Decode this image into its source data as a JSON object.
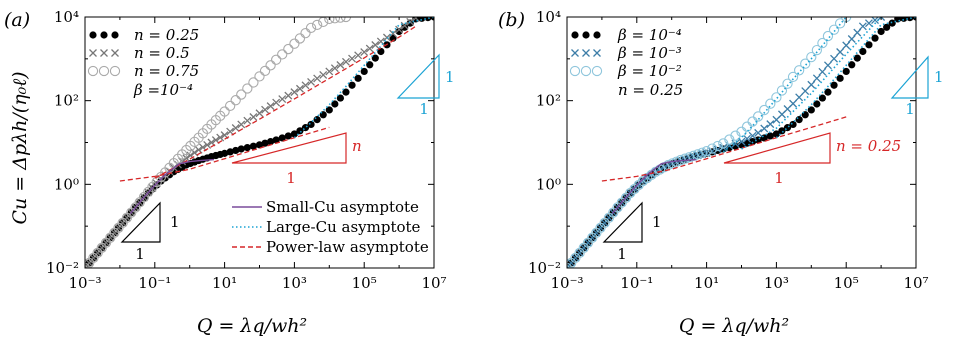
{
  "colors": {
    "black": "#000000",
    "grey": "#777777",
    "lightgrey": "#aaaaaa",
    "red": "#d62728",
    "purple": "#7a4b9b",
    "cyan": "#1ba3d4",
    "blue_x": "#3d7ea8"
  },
  "chart_data": [
    {
      "type": "scatter",
      "panel_label": "(a)",
      "xlabel": "Q = λq/wh²",
      "ylabel": "Cu = Δpλh/(η₀ℓ)",
      "xscale": "log",
      "yscale": "log",
      "xlim": [
        0.001,
        10000000
      ],
      "ylim": [
        0.01,
        10000
      ],
      "x_ticks": [
        "10⁻³",
        "10⁻¹",
        "10¹",
        "10³",
        "10⁵",
        "10⁷"
      ],
      "y_ticks": [
        "10⁻²",
        "10⁰",
        "10²",
        "10⁴"
      ],
      "legend": {
        "entries": [
          {
            "symbol": "●●●",
            "label": "n = 0.25"
          },
          {
            "symbol": "×××",
            "label": "n = 0.5"
          },
          {
            "symbol": "○○○",
            "label": "n = 0.75"
          }
        ],
        "note": "β =10⁻⁴",
        "placement": "top-left"
      },
      "line_legend": [
        {
          "label": "Small-Cu asymptote"
        },
        {
          "label": "Large-Cu asymptote"
        },
        {
          "label": "Power-law asymptote"
        }
      ],
      "series": [
        {
          "name": "n = 0.25",
          "marker": "dot",
          "x": [
            0.001,
            0.0023,
            0.0053,
            0.012,
            0.028,
            0.065,
            0.15,
            0.35,
            0.8,
            1.8,
            4.2,
            10,
            30,
            100,
            300,
            1000,
            3000,
            10000,
            30000,
            100000,
            300000,
            1000000,
            3000000,
            10000000
          ],
          "y": [
            0.01,
            0.023,
            0.053,
            0.12,
            0.28,
            0.62,
            1.2,
            2.0,
            2.9,
            3.7,
            4.6,
            5.5,
            7.0,
            8.8,
            11.5,
            16,
            27,
            60,
            160,
            500,
            1500,
            4500,
            9000,
            10000
          ]
        },
        {
          "name": "n = 0.5",
          "marker": "cross",
          "x": [
            0.001,
            0.0023,
            0.0053,
            0.012,
            0.028,
            0.065,
            0.15,
            0.35,
            0.8,
            1.8,
            4.2,
            10,
            30,
            100,
            300,
            1000,
            3000,
            10000,
            30000,
            100000,
            300000,
            1000000,
            3000000
          ],
          "y": [
            0.01,
            0.023,
            0.053,
            0.12,
            0.28,
            0.64,
            1.35,
            2.5,
            4.2,
            6.7,
            10,
            15,
            27,
            50,
            90,
            160,
            280,
            500,
            850,
            1450,
            2600,
            5000,
            9500
          ]
        },
        {
          "name": "n = 0.75",
          "marker": "circle",
          "x": [
            0.001,
            0.0023,
            0.0053,
            0.012,
            0.028,
            0.065,
            0.15,
            0.35,
            0.8,
            1.8,
            4.2,
            10,
            30,
            100,
            300,
            1000,
            3000,
            10000,
            30000
          ],
          "y": [
            0.01,
            0.023,
            0.053,
            0.12,
            0.28,
            0.66,
            1.5,
            3.2,
            6.6,
            13,
            27,
            55,
            140,
            380,
            950,
            2300,
            5500,
            9000,
            10000
          ]
        }
      ],
      "asymptotes": [
        {
          "kind": "power-law",
          "x": [
            0.01,
            0.1,
            1,
            10,
            100,
            1000,
            10000
          ],
          "y": [
            1.2,
            1.55,
            2.3,
            4.1,
            7.3,
            13,
            23
          ]
        },
        {
          "kind": "power-law",
          "x": [
            0.1,
            1,
            10,
            100,
            1000,
            10000,
            100000,
            1000000,
            3000000
          ],
          "y": [
            1.4,
            4.0,
            12,
            36,
            110,
            340,
            1050,
            3300,
            6000
          ]
        },
        {
          "kind": "small-cu",
          "x": [
            0.02,
            0.05,
            0.1,
            0.2,
            0.5,
            1,
            2,
            5
          ],
          "y": [
            0.2,
            0.5,
            0.95,
            1.7,
            3.1,
            3.5,
            3.7,
            3.9
          ]
        },
        {
          "kind": "large-cu",
          "x": [
            1000,
            3000,
            10000,
            30000,
            100000,
            1000000,
            10000000
          ],
          "y": [
            13,
            30,
            80,
            220,
            700,
            6500,
            10000
          ]
        }
      ],
      "triangles": [
        {
          "label": "1",
          "slope_label": "1"
        },
        {
          "label": "1",
          "slope_label": "n"
        },
        {
          "label": "1",
          "slope_label": "1"
        }
      ]
    },
    {
      "type": "scatter",
      "panel_label": "(b)",
      "xlabel": "Q = λq/wh²",
      "xscale": "log",
      "yscale": "log",
      "xlim": [
        0.001,
        10000000
      ],
      "ylim": [
        0.01,
        10000
      ],
      "x_ticks": [
        "10⁻³",
        "10⁻¹",
        "10¹",
        "10³",
        "10⁵",
        "10⁷"
      ],
      "y_ticks": [
        "10⁻²",
        "10⁰",
        "10²",
        "10⁴"
      ],
      "legend": {
        "entries": [
          {
            "symbol": "●●●",
            "label": "β = 10⁻⁴"
          },
          {
            "symbol": "×××",
            "label": "β = 10⁻³"
          },
          {
            "symbol": "○○○",
            "label": "β = 10⁻²"
          }
        ],
        "note": "n = 0.25",
        "placement": "top-left"
      },
      "series": [
        {
          "name": "β = 10⁻⁴",
          "marker": "dot",
          "x": [
            0.001,
            0.0023,
            0.0053,
            0.012,
            0.028,
            0.065,
            0.15,
            0.35,
            0.8,
            1.8,
            4.2,
            10,
            30,
            100,
            300,
            1000,
            3000,
            10000,
            30000,
            100000,
            300000,
            1000000,
            3000000,
            10000000
          ],
          "y": [
            0.01,
            0.023,
            0.053,
            0.12,
            0.28,
            0.62,
            1.2,
            2.0,
            2.9,
            3.7,
            4.6,
            5.5,
            7.0,
            8.8,
            11.5,
            16,
            27,
            60,
            160,
            500,
            1500,
            4500,
            9000,
            10000
          ]
        },
        {
          "name": "β = 10⁻³",
          "marker": "cross",
          "x": [
            0.001,
            0.0023,
            0.0053,
            0.012,
            0.028,
            0.065,
            0.15,
            0.35,
            0.8,
            1.8,
            4.2,
            10,
            30,
            100,
            300,
            1000,
            3000,
            10000,
            30000,
            100000,
            300000,
            1000000
          ],
          "y": [
            0.01,
            0.023,
            0.053,
            0.12,
            0.28,
            0.62,
            1.2,
            2.0,
            2.9,
            3.7,
            4.6,
            5.6,
            7.5,
            10.5,
            17,
            35,
            85,
            240,
            700,
            2100,
            6000,
            10000
          ]
        },
        {
          "name": "β = 10⁻²",
          "marker": "circle",
          "x": [
            0.001,
            0.0023,
            0.0053,
            0.012,
            0.028,
            0.065,
            0.15,
            0.35,
            0.8,
            1.8,
            4.2,
            10,
            30,
            100,
            300,
            1000,
            3000,
            10000,
            30000,
            100000
          ],
          "y": [
            0.01,
            0.023,
            0.053,
            0.12,
            0.28,
            0.62,
            1.2,
            2.0,
            2.9,
            3.8,
            4.8,
            6.2,
            9.5,
            18,
            42,
            120,
            370,
            1100,
            3500,
            10000
          ]
        }
      ],
      "asymptotes": [
        {
          "kind": "power-law",
          "x": [
            0.01,
            0.1,
            1,
            10,
            100,
            1000,
            10000,
            100000
          ],
          "y": [
            1.2,
            1.55,
            2.3,
            4.1,
            7.3,
            13,
            23,
            41
          ]
        },
        {
          "kind": "small-cu",
          "x": [
            0.02,
            0.05,
            0.1,
            0.2,
            0.5,
            1,
            2,
            5
          ],
          "y": [
            0.2,
            0.5,
            0.95,
            1.7,
            3.1,
            3.5,
            3.7,
            3.9
          ]
        },
        {
          "kind": "large-cu",
          "x": [
            30,
            100,
            300,
            1000,
            3000,
            10000,
            30000,
            100000
          ],
          "y": [
            6,
            13,
            35,
            110,
            330,
            1000,
            3000,
            10000
          ]
        },
        {
          "kind": "large-cu",
          "x": [
            100,
            300,
            1000,
            3000,
            10000,
            30000,
            100000,
            1000000
          ],
          "y": [
            7,
            12,
            22,
            55,
            150,
            420,
            1300,
            10000
          ]
        },
        {
          "kind": "large-cu",
          "x": [
            1000,
            3000,
            10000,
            30000,
            100000,
            1000000,
            10000000
          ],
          "y": [
            13,
            30,
            80,
            220,
            700,
            6500,
            10000
          ]
        }
      ],
      "triangles": [
        {
          "label": "1",
          "slope_label": "1"
        },
        {
          "label": "1",
          "slope_label": "n = 0.25"
        },
        {
          "label": "1",
          "slope_label": "1"
        }
      ]
    }
  ]
}
